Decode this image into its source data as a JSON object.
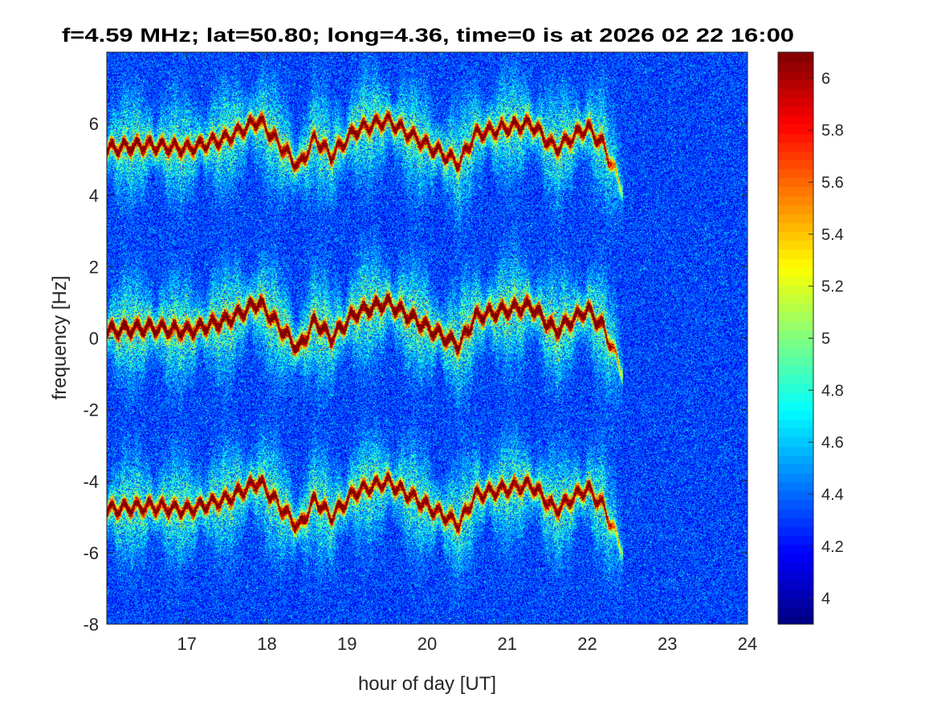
{
  "chart_data": {
    "type": "heatmap",
    "title": "f=4.59 MHz;  lat=50.80; long=4.36, time=0 is at 2026 02 22 16:00",
    "xlabel": "hour of day [UT]",
    "ylabel": "frequency [Hz]",
    "xlim": [
      16,
      24
    ],
    "ylim": [
      -8,
      8
    ],
    "xticks": [
      "17",
      "18",
      "19",
      "20",
      "21",
      "22",
      "23",
      "24"
    ],
    "yticks": [
      "-8",
      "-6",
      "-4",
      "-2",
      "0",
      "2",
      "4",
      "6"
    ],
    "colorbar": {
      "colormap": "jet",
      "clim": [
        3.9,
        6.1
      ],
      "ticks": [
        "4",
        "4.2",
        "4.4",
        "4.6",
        "4.8",
        "5",
        "5.2",
        "5.4",
        "5.6",
        "5.8",
        "6"
      ]
    },
    "background_level": 4.3,
    "traces": [
      {
        "name": "central Doppler trace",
        "offset_hz": 0,
        "points": [
          [
            16.0,
            0.2
          ],
          [
            16.5,
            0.3
          ],
          [
            17.0,
            0.2
          ],
          [
            17.5,
            0.5
          ],
          [
            17.9,
            1.0
          ],
          [
            18.2,
            0.2
          ],
          [
            18.4,
            -0.3
          ],
          [
            18.6,
            0.5
          ],
          [
            18.8,
            0.0
          ],
          [
            19.1,
            0.7
          ],
          [
            19.5,
            1.0
          ],
          [
            20.0,
            0.3
          ],
          [
            20.4,
            -0.2
          ],
          [
            20.6,
            0.6
          ],
          [
            21.0,
            0.8
          ],
          [
            21.3,
            0.9
          ],
          [
            21.6,
            0.2
          ],
          [
            22.0,
            0.8
          ],
          [
            22.2,
            0.3
          ],
          [
            22.45,
            -1.0
          ]
        ]
      },
      {
        "name": "upper sideband trace",
        "offset_hz": 5.1
      },
      {
        "name": "lower sideband trace",
        "offset_hz": -5.0
      }
    ]
  }
}
